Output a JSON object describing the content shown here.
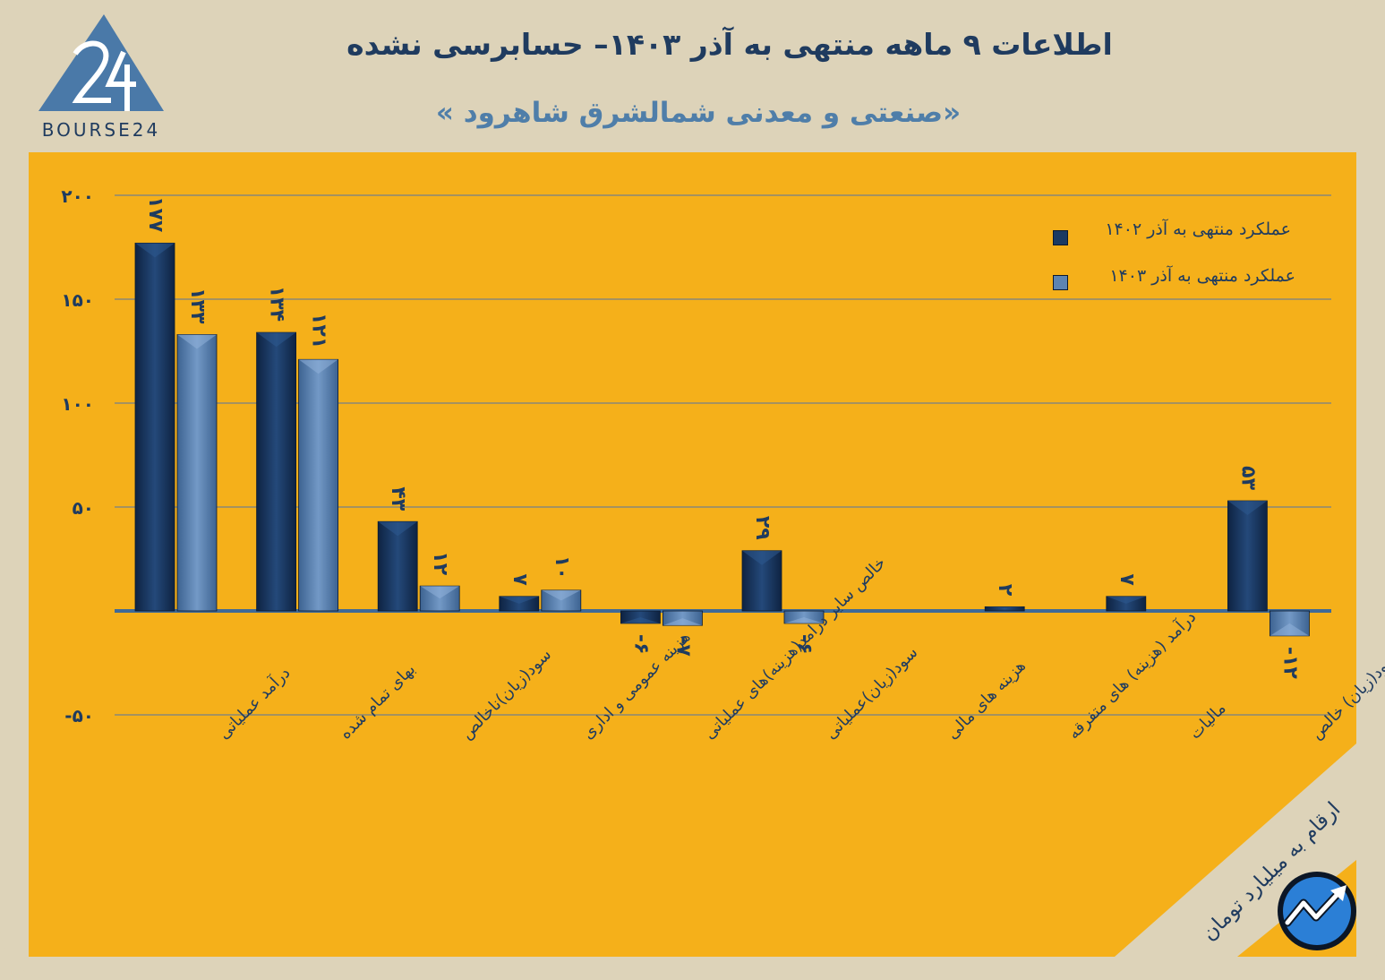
{
  "header": {
    "title": "اطلاعات ۹ ماهه منتهی به آذر ۱۴۰۳– حسابرسی نشده",
    "subtitle": "«صنعتی و معدنی شمالشرق شاهرود »"
  },
  "logo": {
    "text": "BOURSE24",
    "icon": "bourse24-triangle-logo"
  },
  "badge_icon": "trend-arrow-icon",
  "units_note": "ارقام به میلیارد تومان",
  "colors": {
    "background": "#ddd3b9",
    "panel": "#f5b01a",
    "series_1402": "#1b3a62",
    "series_1403": "#5d84b2",
    "text": "#1f3b5f"
  },
  "chart_data": {
    "type": "bar",
    "categories": [
      "درآمد عملیاتی",
      "بهای تمام شده",
      "سود(زیان)ناخالص",
      "هزینه عمومی و اداری",
      "خالص سایر درامد(هزینه)های عملیاتی",
      "سود(زیان)عملیاتی",
      "هزینه های مالی",
      "درآمد (هزینه) های متفرقه",
      "مالیات",
      "سود(زیان) خالص"
    ],
    "series": [
      {
        "name": "عملکرد منتهی به آذر ۱۴۰۲",
        "values": [
          177,
          134,
          43,
          7,
          -6,
          29,
          0,
          2,
          7,
          53
        ],
        "labels": [
          "۱۷۷",
          "۱۳۴",
          "۴۳",
          "۷",
          "-۶",
          "۲۹",
          "",
          "۲",
          "۷",
          "۵۳"
        ]
      },
      {
        "name": "عملکرد منتهی به آذر ۱۴۰۳",
        "values": [
          133,
          121,
          12,
          10,
          -7,
          -6,
          0,
          0,
          0,
          -12
        ],
        "labels": [
          "۱۳۳",
          "۱۲۱",
          "۱۲",
          "۱۰",
          "-۷",
          "-۶",
          "",
          "",
          "",
          "-۱۲"
        ]
      }
    ],
    "ylim": [
      -50,
      200
    ],
    "yticks": [
      200,
      150,
      100,
      50,
      -50
    ],
    "ytick_labels": [
      "۲۰۰",
      "۱۵۰",
      "۱۰۰",
      "۵۰",
      "-۵۰"
    ],
    "grid": true,
    "legend_position": "top-right"
  }
}
